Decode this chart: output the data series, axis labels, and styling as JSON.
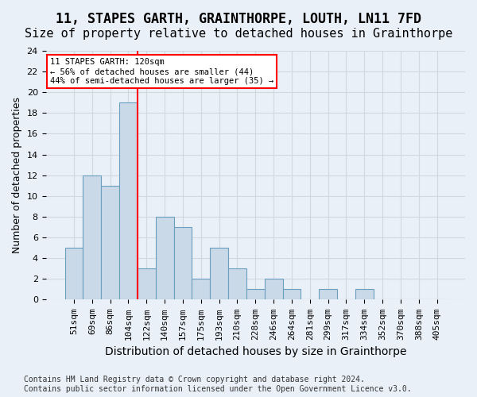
{
  "title": "11, STAPES GARTH, GRAINTHORPE, LOUTH, LN11 7FD",
  "subtitle": "Size of property relative to detached houses in Grainthorpe",
  "xlabel": "Distribution of detached houses by size in Grainthorpe",
  "ylabel": "Number of detached properties",
  "bar_values": [
    5,
    12,
    11,
    19,
    3,
    8,
    7,
    2,
    5,
    3,
    1,
    2,
    1,
    0,
    1,
    0,
    1,
    0,
    0,
    0,
    0
  ],
  "bin_labels": [
    "51sqm",
    "69sqm",
    "86sqm",
    "104sqm",
    "122sqm",
    "140sqm",
    "157sqm",
    "175sqm",
    "193sqm",
    "210sqm",
    "228sqm",
    "246sqm",
    "264sqm",
    "281sqm",
    "299sqm",
    "317sqm",
    "334sqm",
    "352sqm",
    "370sqm",
    "388sqm",
    "405sqm"
  ],
  "bar_color": "#c9d9e8",
  "bar_edge_color": "#6a9fc0",
  "grid_color": "#d0d8e0",
  "background_color": "#eaf0f8",
  "annotation_text": "11 STAPES GARTH: 120sqm\n← 56% of detached houses are smaller (44)\n44% of semi-detached houses are larger (35) →",
  "vline_x_index": 4,
  "annotation_box_color": "white",
  "annotation_box_edge": "red",
  "vline_color": "red",
  "footer_text": "Contains HM Land Registry data © Crown copyright and database right 2024.\nContains public sector information licensed under the Open Government Licence v3.0.",
  "ylim": [
    0,
    24
  ],
  "yticks": [
    0,
    2,
    4,
    6,
    8,
    10,
    12,
    14,
    16,
    18,
    20,
    22,
    24
  ],
  "title_fontsize": 12,
  "subtitle_fontsize": 11,
  "xlabel_fontsize": 10,
  "ylabel_fontsize": 9,
  "tick_fontsize": 8,
  "footer_fontsize": 7
}
